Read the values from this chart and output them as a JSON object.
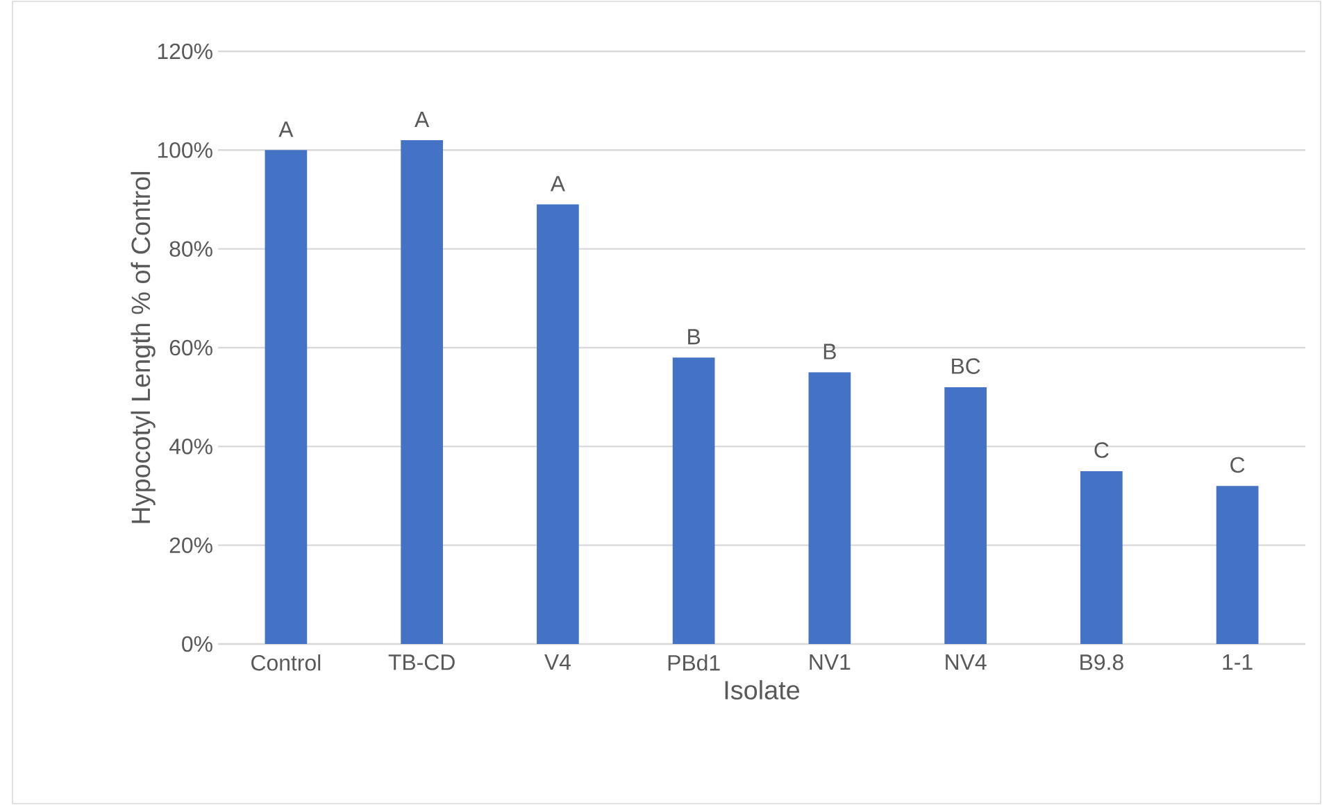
{
  "chart_data": {
    "type": "bar",
    "xlabel": "Isolate",
    "ylabel": "Hypocotyl Length % of Control",
    "categories": [
      "Control",
      "TB-CD",
      "V4",
      "PBd1",
      "NV1",
      "NV4",
      "B9.8",
      "1-1"
    ],
    "values": [
      100,
      102,
      89,
      58,
      55,
      52,
      35,
      32
    ],
    "color": "#4472c4",
    "ylim": [
      0,
      120
    ],
    "yticks": [
      {
        "value": 0,
        "label": "0%"
      },
      {
        "value": 20,
        "label": "20%"
      },
      {
        "value": 40,
        "label": "40%"
      },
      {
        "value": 60,
        "label": "60%"
      },
      {
        "value": 80,
        "label": "80%"
      },
      {
        "value": 100,
        "label": "100%"
      },
      {
        "value": 120,
        "label": "120%"
      }
    ],
    "grid": "y",
    "annotations": [
      {
        "text": "A",
        "x": "Control",
        "y": 100
      },
      {
        "text": "A",
        "x": "TB-CD",
        "y": 102
      },
      {
        "text": "A",
        "x": "V4",
        "y": 89
      },
      {
        "text": "B",
        "x": "PBd1",
        "y": 58
      },
      {
        "text": "B",
        "x": "NV1",
        "y": 55
      },
      {
        "text": "BC",
        "x": "NV4",
        "y": 52
      },
      {
        "text": "C",
        "x": "B9.8",
        "y": 35
      },
      {
        "text": "C",
        "x": "1-1",
        "y": 32
      }
    ]
  }
}
